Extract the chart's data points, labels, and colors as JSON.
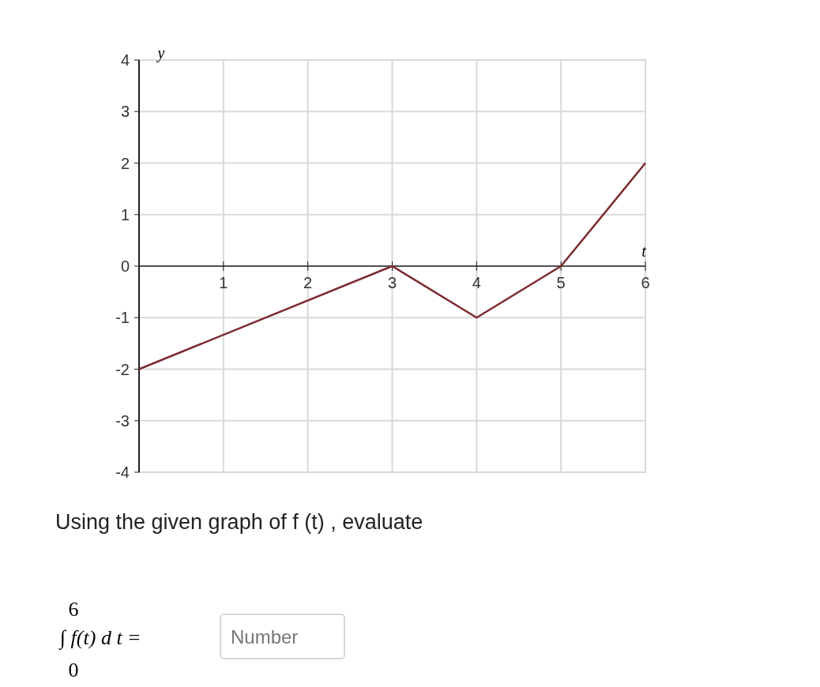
{
  "chart_data": {
    "type": "line",
    "xlabel": "t",
    "ylabel": "y",
    "xlim": [
      0,
      6
    ],
    "ylim": [
      -4,
      4
    ],
    "xticks": [
      1,
      2,
      3,
      4,
      5,
      6
    ],
    "yticks": [
      -4,
      -3,
      -2,
      -1,
      0,
      1,
      2,
      3,
      4
    ],
    "grid": true,
    "marker": "none",
    "line_style": "solid",
    "series": [
      {
        "color": "#7b2a2e",
        "x": [
          0,
          3,
          4,
          5,
          6
        ],
        "values": [
          -2,
          0,
          -1,
          0,
          2
        ]
      }
    ],
    "annotations": [
      "Using the given graph of f (t) , evaluate",
      "6",
      "0",
      "∫ f(t) d t =",
      "Number"
    ]
  }
}
